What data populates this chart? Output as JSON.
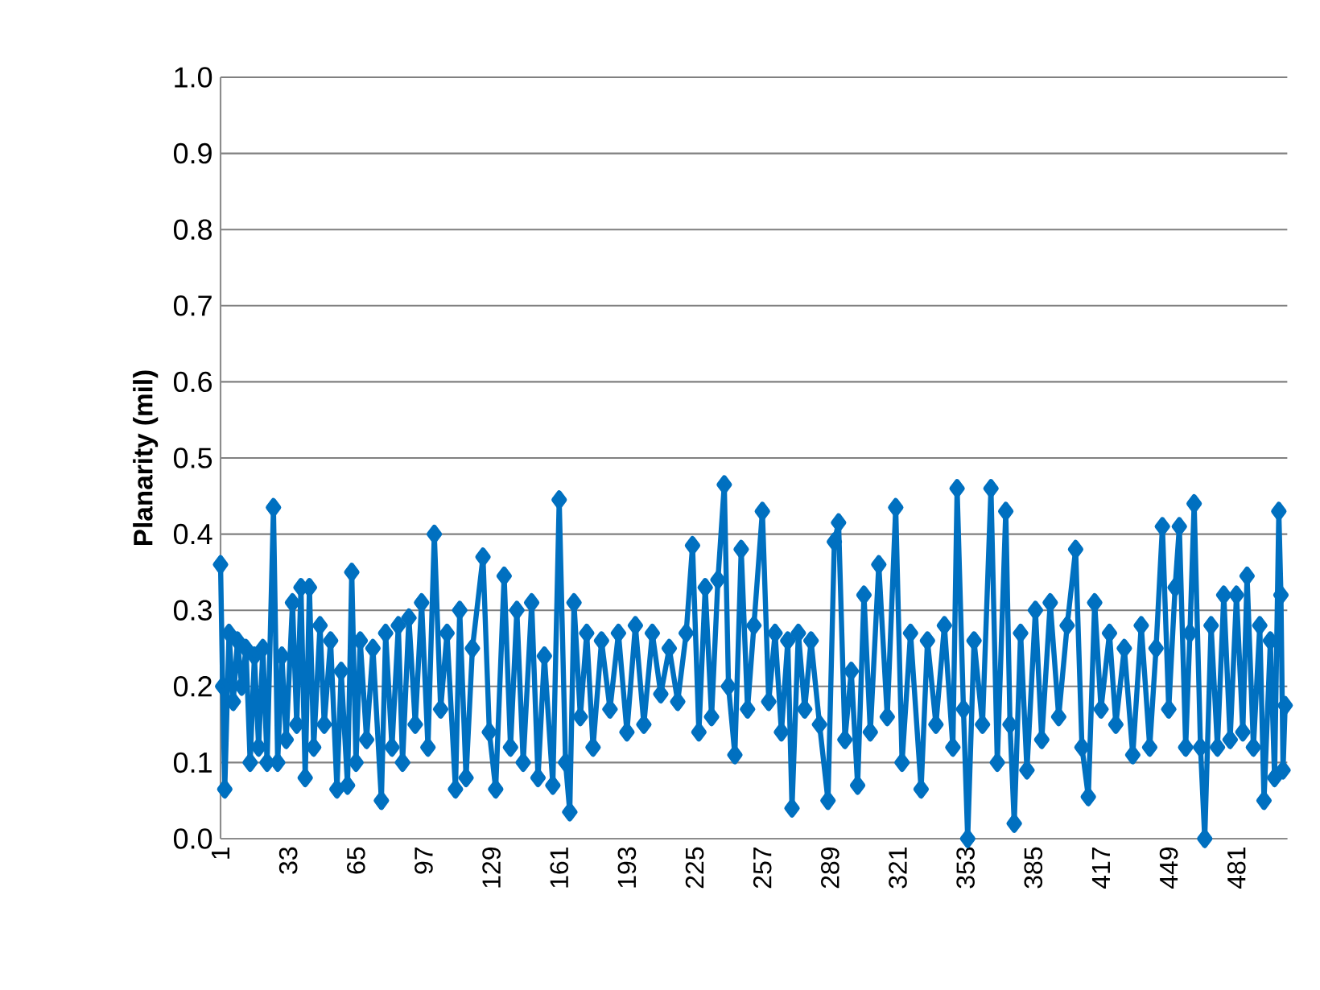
{
  "chart_data": {
    "type": "line",
    "ylabel": "Planarity (mil)",
    "marker": "diamond",
    "line_style": "solid",
    "grid": "y",
    "xlim": [
      1,
      505
    ],
    "xticks": [
      1,
      33,
      65,
      97,
      129,
      161,
      193,
      225,
      257,
      289,
      321,
      353,
      385,
      417,
      449,
      481
    ],
    "ylim": [
      0,
      1
    ],
    "yticks": [
      {
        "value": 0,
        "label": "0.0"
      },
      0.1,
      0.2,
      0.3,
      0.4,
      0.5,
      0.6,
      0.7,
      0.8,
      0.9,
      {
        "value": 1,
        "label": "1.0"
      }
    ],
    "series": [
      {
        "color": "#0070c0",
        "x": [
          1,
          2,
          3,
          5,
          7,
          9,
          11,
          13,
          15,
          17,
          19,
          21,
          23,
          26,
          28,
          30,
          32,
          35,
          37,
          39,
          41,
          43,
          45,
          48,
          50,
          53,
          56,
          58,
          61,
          63,
          65,
          67,
          70,
          73,
          77,
          79,
          82,
          85,
          87,
          90,
          93,
          96,
          99,
          102,
          105,
          108,
          112,
          114,
          117,
          120,
          125,
          128,
          131,
          135,
          138,
          141,
          144,
          148,
          151,
          154,
          158,
          161,
          164,
          166,
          168,
          171,
          174,
          177,
          181,
          185,
          189,
          193,
          197,
          201,
          205,
          209,
          213,
          217,
          221,
          224,
          227,
          230,
          233,
          236,
          239,
          241,
          244,
          247,
          250,
          253,
          257,
          260,
          263,
          266,
          269,
          271,
          274,
          277,
          280,
          284,
          288,
          291,
          293,
          296,
          299,
          302,
          305,
          308,
          312,
          316,
          320,
          323,
          327,
          332,
          335,
          339,
          343,
          347,
          349,
          352,
          354,
          357,
          361,
          365,
          368,
          372,
          374,
          376,
          379,
          382,
          386,
          389,
          393,
          397,
          401,
          405,
          408,
          411,
          414,
          417,
          421,
          424,
          428,
          432,
          436,
          440,
          443,
          446,
          449,
          452,
          454,
          457,
          459,
          461,
          464,
          466,
          469,
          472,
          475,
          478,
          481,
          484,
          486,
          489,
          492,
          494,
          497,
          499,
          501,
          502,
          503,
          504
        ],
        "values": [
          0.36,
          0.2,
          0.065,
          0.27,
          0.18,
          0.26,
          0.2,
          0.25,
          0.1,
          0.24,
          0.12,
          0.25,
          0.1,
          0.435,
          0.1,
          0.24,
          0.13,
          0.31,
          0.15,
          0.33,
          0.08,
          0.33,
          0.12,
          0.28,
          0.15,
          0.26,
          0.065,
          0.22,
          0.07,
          0.35,
          0.1,
          0.26,
          0.13,
          0.25,
          0.05,
          0.27,
          0.12,
          0.28,
          0.1,
          0.29,
          0.15,
          0.31,
          0.12,
          0.4,
          0.17,
          0.27,
          0.065,
          0.3,
          0.08,
          0.25,
          0.37,
          0.14,
          0.065,
          0.345,
          0.12,
          0.3,
          0.1,
          0.31,
          0.08,
          0.24,
          0.07,
          0.445,
          0.1,
          0.035,
          0.31,
          0.16,
          0.27,
          0.12,
          0.26,
          0.17,
          0.27,
          0.14,
          0.28,
          0.15,
          0.27,
          0.19,
          0.25,
          0.18,
          0.27,
          0.385,
          0.14,
          0.33,
          0.16,
          0.34,
          0.465,
          0.2,
          0.11,
          0.38,
          0.17,
          0.28,
          0.43,
          0.18,
          0.27,
          0.14,
          0.26,
          0.04,
          0.27,
          0.17,
          0.26,
          0.15,
          0.05,
          0.39,
          0.415,
          0.13,
          0.22,
          0.07,
          0.32,
          0.14,
          0.36,
          0.16,
          0.435,
          0.1,
          0.27,
          0.065,
          0.26,
          0.15,
          0.28,
          0.12,
          0.46,
          0.17,
          0.0,
          0.26,
          0.15,
          0.46,
          0.1,
          0.43,
          0.15,
          0.02,
          0.27,
          0.09,
          0.3,
          0.13,
          0.31,
          0.16,
          0.28,
          0.38,
          0.12,
          0.055,
          0.31,
          0.17,
          0.27,
          0.15,
          0.25,
          0.11,
          0.28,
          0.12,
          0.25,
          0.41,
          0.17,
          0.33,
          0.41,
          0.12,
          0.27,
          0.44,
          0.12,
          0.0,
          0.28,
          0.12,
          0.32,
          0.13,
          0.32,
          0.14,
          0.345,
          0.12,
          0.28,
          0.05,
          0.26,
          0.08,
          0.43,
          0.32,
          0.09,
          0.175
        ]
      }
    ]
  }
}
